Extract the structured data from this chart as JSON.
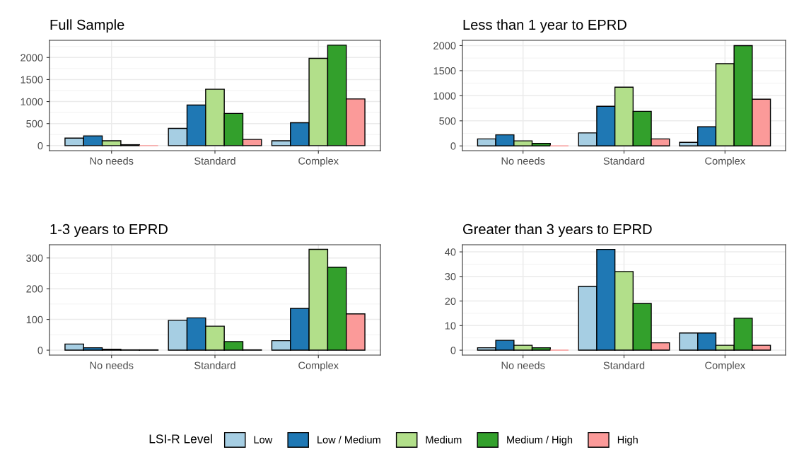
{
  "chart_data": [
    {
      "type": "bar",
      "title": "Full Sample",
      "categories": [
        "No needs",
        "Standard",
        "Complex"
      ],
      "ylim": [
        -115,
        2390
      ],
      "yticks": [
        0,
        500,
        1000,
        1500,
        2000
      ],
      "grid": true,
      "legend": "bottom",
      "legend_title": "LSI-R Level",
      "series": [
        {
          "name": "Low",
          "color": "#a6cee3",
          "values": [
            170,
            390,
            110
          ]
        },
        {
          "name": "Low / Medium",
          "color": "#1f78b4",
          "values": [
            220,
            920,
            520
          ]
        },
        {
          "name": "Medium",
          "color": "#b2df8a",
          "values": [
            110,
            1280,
            1980
          ]
        },
        {
          "name": "Medium / High",
          "color": "#33a02c",
          "values": [
            20,
            730,
            2280
          ]
        },
        {
          "name": "High",
          "color": "#fb9a99",
          "values": [
            0,
            140,
            1060
          ]
        }
      ]
    },
    {
      "type": "bar",
      "title": "Less than 1 year to EPRD",
      "categories": [
        "No needs",
        "Standard",
        "Complex"
      ],
      "ylim": [
        -95,
        2105
      ],
      "yticks": [
        0,
        500,
        1000,
        1500,
        2000
      ],
      "grid": true,
      "series": [
        {
          "color": "#a6cee3",
          "values": [
            140,
            260,
            70
          ]
        },
        {
          "color": "#1f78b4",
          "values": [
            220,
            790,
            380
          ]
        },
        {
          "color": "#b2df8a",
          "values": [
            100,
            1170,
            1640
          ]
        },
        {
          "color": "#33a02c",
          "values": [
            50,
            690,
            2000
          ]
        },
        {
          "color": "#fb9a99",
          "values": [
            0,
            140,
            930
          ]
        }
      ]
    },
    {
      "type": "bar",
      "title": "1-3 years to EPRD",
      "categories": [
        "No needs",
        "Standard",
        "Complex"
      ],
      "ylim": [
        -16,
        343
      ],
      "yticks": [
        0,
        100,
        200,
        300
      ],
      "grid": true,
      "series": [
        {
          "color": "#a6cee3",
          "values": [
            20,
            97,
            31
          ]
        },
        {
          "color": "#1f78b4",
          "values": [
            8,
            105,
            136
          ]
        },
        {
          "color": "#b2df8a",
          "values": [
            3,
            78,
            328
          ]
        },
        {
          "color": "#33a02c",
          "values": [
            1,
            28,
            270
          ]
        },
        {
          "color": "#fb9a99",
          "values": [
            1,
            1,
            118
          ]
        }
      ]
    },
    {
      "type": "bar",
      "title": "Greater than 3 years to EPRD",
      "categories": [
        "No needs",
        "Standard",
        "Complex"
      ],
      "ylim": [
        -2,
        42.9
      ],
      "yticks": [
        0,
        10,
        20,
        30,
        40
      ],
      "grid": true,
      "series": [
        {
          "color": "#a6cee3",
          "values": [
            1,
            26,
            7
          ]
        },
        {
          "color": "#1f78b4",
          "values": [
            4,
            41,
            7
          ]
        },
        {
          "color": "#b2df8a",
          "values": [
            2,
            32,
            2
          ]
        },
        {
          "color": "#33a02c",
          "values": [
            1,
            19,
            13
          ]
        },
        {
          "color": "#fb9a99",
          "values": [
            0,
            3,
            2
          ]
        }
      ]
    }
  ]
}
